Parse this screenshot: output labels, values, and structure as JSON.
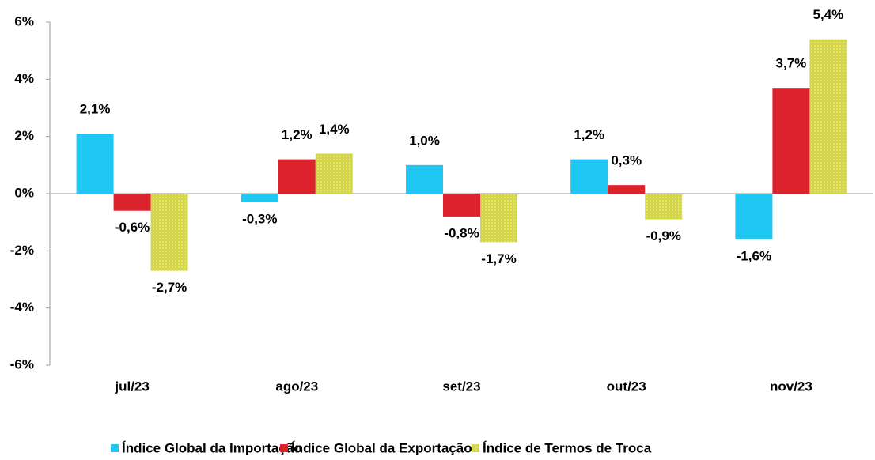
{
  "chart_data": {
    "type": "bar",
    "categories": [
      "jul/23",
      "ago/23",
      "set/23",
      "out/23",
      "nov/23"
    ],
    "series": [
      {
        "name": "Índice Global da Importação",
        "color": "#1ec8f2",
        "values": [
          2.1,
          -0.3,
          1.0,
          1.2,
          -1.6
        ],
        "value_labels": [
          "2,1%",
          "-0,3%",
          "1,0%",
          "1,2%",
          "-1,6%"
        ]
      },
      {
        "name": "Índice Global da Exportação",
        "color": "#dc232d",
        "values": [
          -0.6,
          1.2,
          -0.8,
          0.3,
          3.7
        ],
        "value_labels": [
          "-0,6%",
          "1,2%",
          "-0,8%",
          "0,3%",
          "3,7%"
        ]
      },
      {
        "name": "Índice de Termos de Troca",
        "color": "#d6d64a",
        "values": [
          -2.7,
          1.4,
          -1.7,
          -0.9,
          5.4
        ],
        "value_labels": [
          "-2,7%",
          "1,4%",
          "-1,7%",
          "-0,9%",
          "5,4%"
        ]
      }
    ],
    "ylim": [
      -6,
      6
    ],
    "yticks": [
      {
        "value": -6,
        "label": "-6%"
      },
      {
        "value": -4,
        "label": "-4%"
      },
      {
        "value": -2,
        "label": "-2%"
      },
      {
        "value": 0,
        "label": "0%"
      },
      {
        "value": 2,
        "label": "2%"
      },
      {
        "value": 4,
        "label": "4%"
      },
      {
        "value": 6,
        "label": "6%"
      }
    ],
    "legend": "bottom"
  }
}
